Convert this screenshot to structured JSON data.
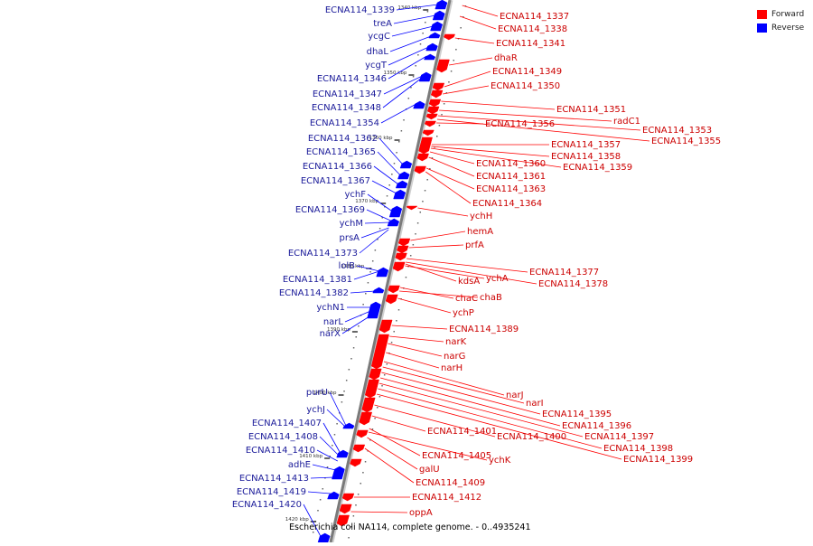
{
  "colors": {
    "forward": "#ff0000",
    "reverse": "#0000ff",
    "backbone": "#808080",
    "label_forward": "#cc0000",
    "label_reverse": "#1a1a99"
  },
  "legend": [
    {
      "label": "Forward",
      "color": "#ff0000"
    },
    {
      "label": "Reverse",
      "color": "#0000ff"
    }
  ],
  "caption": "Escherichia coli NA114, complete genome. - 0..4935241",
  "ticks": [
    "1340 kbp",
    "1350 kbp",
    "1360 kbp",
    "1370 kbp",
    "1380 kbp",
    "1390 kbp",
    "1400 kbp",
    "1410 kbp",
    "1420 kbp"
  ],
  "reverse_labels": [
    "ECNA114_1339",
    "treA",
    "ycgC",
    "dhaL",
    "ycgT",
    "ECNA114_1346",
    "ECNA114_1347",
    "ECNA114_1348",
    "ECNA114_1354",
    "ECNA114_1362",
    "ECNA114_1365",
    "ECNA114_1366",
    "ECNA114_1367",
    "ychF",
    "ECNA114_1369",
    "ychM",
    "prsA",
    "ECNA114_1373",
    "lolB",
    "ECNA114_1381",
    "ECNA114_1382",
    "ychN1",
    "narL",
    "narX",
    "purU",
    "ychJ",
    "ECNA114_1407",
    "ECNA114_1408",
    "ECNA114_1410",
    "adhE",
    "ECNA114_1413",
    "ECNA114_1419",
    "ECNA114_1420"
  ],
  "forward_labels": [
    "ECNA114_1337",
    "ECNA114_1338",
    "ECNA114_1341",
    "dhaR",
    "ECNA114_1349",
    "ECNA114_1350",
    "ECNA114_1351",
    "radC1",
    "ECNA114_1353",
    "ECNA114_1355",
    "ECNA114_1356",
    "ECNA114_1357",
    "ECNA114_1358",
    "ECNA114_1359",
    "ECNA114_1360",
    "ECNA114_1361",
    "ECNA114_1363",
    "ECNA114_1364",
    "ychH",
    "hemA",
    "prfA",
    "ECNA114_1377",
    "ECNA114_1378",
    "kdsA",
    "ychA",
    "chaC",
    "chaB",
    "ychP",
    "ECNA114_1389",
    "narK",
    "narG",
    "narH",
    "narJ",
    "narI",
    "ECNA114_1395",
    "ECNA114_1396",
    "ECNA114_1397",
    "ECNA114_1398",
    "ECNA114_1399",
    "ECNA114_1400",
    "ECNA114_1401",
    "ECNA114_1405",
    "ychK",
    "galU",
    "ECNA114_1409",
    "ECNA114_1412",
    "oppA"
  ]
}
